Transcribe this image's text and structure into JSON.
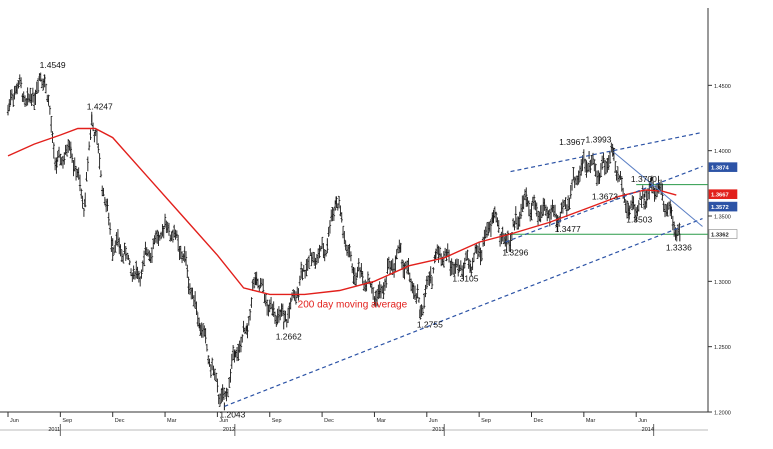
{
  "chart_data": {
    "type": "ohlc",
    "title": "",
    "xlabel": "",
    "ylabel": "",
    "ylim": [
      1.2,
      1.5
    ],
    "y_ticks": [
      {
        "value": 1.2,
        "label": "1.2000"
      },
      {
        "value": 1.25,
        "label": "1.2500"
      },
      {
        "value": 1.3,
        "label": "1.3000"
      },
      {
        "value": 1.35,
        "label": "1.3500"
      },
      {
        "value": 1.4,
        "label": "1.4000"
      },
      {
        "value": 1.45,
        "label": "1.4500"
      }
    ],
    "x_month_ticks": [
      {
        "month": 0,
        "label": "Jun"
      },
      {
        "month": 3,
        "label": "Sep"
      },
      {
        "month": 6,
        "label": "Dec"
      },
      {
        "month": 9,
        "label": "Mar"
      },
      {
        "month": 12,
        "label": "Jun"
      },
      {
        "month": 15,
        "label": "Sep"
      },
      {
        "month": 18,
        "label": "Dec"
      },
      {
        "month": 21,
        "label": "Mar"
      },
      {
        "month": 24,
        "label": "Jun"
      },
      {
        "month": 27,
        "label": "Sep"
      },
      {
        "month": 30,
        "label": "Dec"
      },
      {
        "month": 33,
        "label": "Mar"
      },
      {
        "month": 36,
        "label": "Jun"
      }
    ],
    "x_year_ticks": [
      {
        "month": 3,
        "label": "2011"
      },
      {
        "month": 13,
        "label": "2012"
      },
      {
        "month": 25,
        "label": "2013"
      },
      {
        "month": 37,
        "label": "2014"
      }
    ],
    "price_anchors": [
      [
        0.0,
        1.43
      ],
      [
        0.5,
        1.448
      ],
      [
        1.2,
        1.44
      ],
      [
        2.1,
        1.4549
      ],
      [
        2.8,
        1.39
      ],
      [
        3.6,
        1.4
      ],
      [
        4.4,
        1.36
      ],
      [
        4.8,
        1.4247
      ],
      [
        6.0,
        1.33
      ],
      [
        7.5,
        1.305
      ],
      [
        9.0,
        1.345
      ],
      [
        10.2,
        1.315
      ],
      [
        11.0,
        1.265
      ],
      [
        12.4,
        1.2043
      ],
      [
        13.0,
        1.245
      ],
      [
        13.7,
        1.265
      ],
      [
        14.2,
        1.3
      ],
      [
        15.8,
        1.2662
      ],
      [
        16.8,
        1.305
      ],
      [
        18.3,
        1.33
      ],
      [
        18.8,
        1.362
      ],
      [
        19.8,
        1.308
      ],
      [
        21.3,
        1.29
      ],
      [
        22.5,
        1.325
      ],
      [
        23.6,
        1.2755
      ],
      [
        24.5,
        1.32
      ],
      [
        26.5,
        1.3105
      ],
      [
        27.8,
        1.348
      ],
      [
        28.5,
        1.3296
      ],
      [
        29.7,
        1.36
      ],
      [
        31.5,
        1.3477
      ],
      [
        33.3,
        1.3967
      ],
      [
        33.9,
        1.38
      ],
      [
        34.7,
        1.3993
      ],
      [
        35.6,
        1.3503
      ],
      [
        36.5,
        1.3673
      ],
      [
        37.3,
        1.37
      ],
      [
        38.0,
        1.355
      ],
      [
        38.5,
        1.3336
      ]
    ],
    "moving_average": {
      "label": "200 day moving average",
      "points": [
        [
          0.0,
          1.396
        ],
        [
          1.5,
          1.405
        ],
        [
          3.0,
          1.412
        ],
        [
          4.0,
          1.417
        ],
        [
          5.0,
          1.417
        ],
        [
          6.0,
          1.41
        ],
        [
          8.0,
          1.38
        ],
        [
          10.0,
          1.35
        ],
        [
          12.0,
          1.32
        ],
        [
          13.5,
          1.295
        ],
        [
          15.0,
          1.29
        ],
        [
          17.0,
          1.29
        ],
        [
          19.0,
          1.293
        ],
        [
          21.0,
          1.3
        ],
        [
          23.0,
          1.312
        ],
        [
          25.0,
          1.318
        ],
        [
          27.0,
          1.33
        ],
        [
          29.0,
          1.337
        ],
        [
          31.0,
          1.345
        ],
        [
          33.0,
          1.355
        ],
        [
          35.0,
          1.365
        ],
        [
          36.5,
          1.37
        ],
        [
          37.5,
          1.369
        ],
        [
          38.3,
          1.366
        ]
      ]
    },
    "trendlines": [
      {
        "style": "dash",
        "color": "#2c53a6",
        "from": [
          12.4,
          1.2043
        ],
        "to": [
          39.8,
          1.348
        ]
      },
      {
        "style": "dash",
        "color": "#2c53a6",
        "from": [
          28.8,
          1.384
        ],
        "to": [
          39.8,
          1.414
        ]
      },
      {
        "style": "dash",
        "color": "#2c53a6",
        "from": [
          28.5,
          1.33
        ],
        "to": [
          39.8,
          1.388
        ]
      },
      {
        "style": "solid",
        "color": "#5b7fc4",
        "from": [
          34.7,
          1.399
        ],
        "to": [
          39.8,
          1.342
        ]
      }
    ],
    "horizontal_lines": [
      {
        "value": 1.374,
        "color": "#2a9a48",
        "from": 36.0
      },
      {
        "value": 1.336,
        "color": "#2a9a48",
        "from": 28.5
      }
    ],
    "annotations": [
      {
        "text": "1.4549",
        "at": [
          2.1,
          1.4549
        ],
        "dx": -5,
        "dy": -11
      },
      {
        "text": "1.4247",
        "at": [
          4.8,
          1.4247
        ],
        "dx": -5,
        "dy": -9
      },
      {
        "text": "1.2043",
        "at": [
          12.4,
          1.2043
        ],
        "dx": -5,
        "dy": 11
      },
      {
        "text": "1.2662",
        "at": [
          15.8,
          1.2662
        ],
        "dx": -8,
        "dy": 14
      },
      {
        "text": "1.2755",
        "at": [
          23.6,
          1.2755
        ],
        "dx": -3,
        "dy": 14
      },
      {
        "text": "1.3105",
        "at": [
          26.5,
          1.3105
        ],
        "dx": -18,
        "dy": 14
      },
      {
        "text": "1.3296",
        "at": [
          28.5,
          1.3296
        ],
        "dx": -3,
        "dy": 13
      },
      {
        "text": "1.3477",
        "at": [
          31.5,
          1.3477
        ],
        "dx": -3,
        "dy": 13
      },
      {
        "text": "1.3967",
        "at": [
          33.3,
          1.3967
        ],
        "dx": -30,
        "dy": -10
      },
      {
        "text": "1.3993",
        "at": [
          34.7,
          1.3993
        ],
        "dx": -28,
        "dy": -9
      },
      {
        "text": "1.3673",
        "at": [
          36.5,
          1.3673
        ],
        "dx": -53,
        "dy": 6
      },
      {
        "text": "1.3700",
        "at": [
          37.3,
          1.37
        ],
        "dx": -28,
        "dy": -8
      },
      {
        "text": "1.3503",
        "at": [
          35.6,
          1.3503
        ],
        "dx": -3,
        "dy": 7
      },
      {
        "text": "1.3336",
        "at": [
          38.5,
          1.3336
        ],
        "dx": -14,
        "dy": 13
      },
      {
        "text": "200 day moving average",
        "at": [
          16.6,
          1.28
        ],
        "dx": 0,
        "dy": 0,
        "color": "#e2201c",
        "size": 10
      }
    ],
    "axis_badges": [
      {
        "text": "1.3874",
        "value": 1.3874,
        "bg": "#2c53a6",
        "fg": "#ffffff"
      },
      {
        "text": "1.3667",
        "value": 1.3667,
        "bg": "#e2201c",
        "fg": "#ffffff"
      },
      {
        "text": "1.3572",
        "value": 1.3572,
        "bg": "#2c53a6",
        "fg": "#ffffff"
      },
      {
        "text": "1.3362",
        "value": 1.3362,
        "bg": "#ffffff",
        "fg": "#222222"
      }
    ],
    "grid": false,
    "colors": {
      "price": "#1a1a1a",
      "moving_average": "#e2201c",
      "trend": "#2c53a6",
      "support": "#2a9a48"
    }
  }
}
